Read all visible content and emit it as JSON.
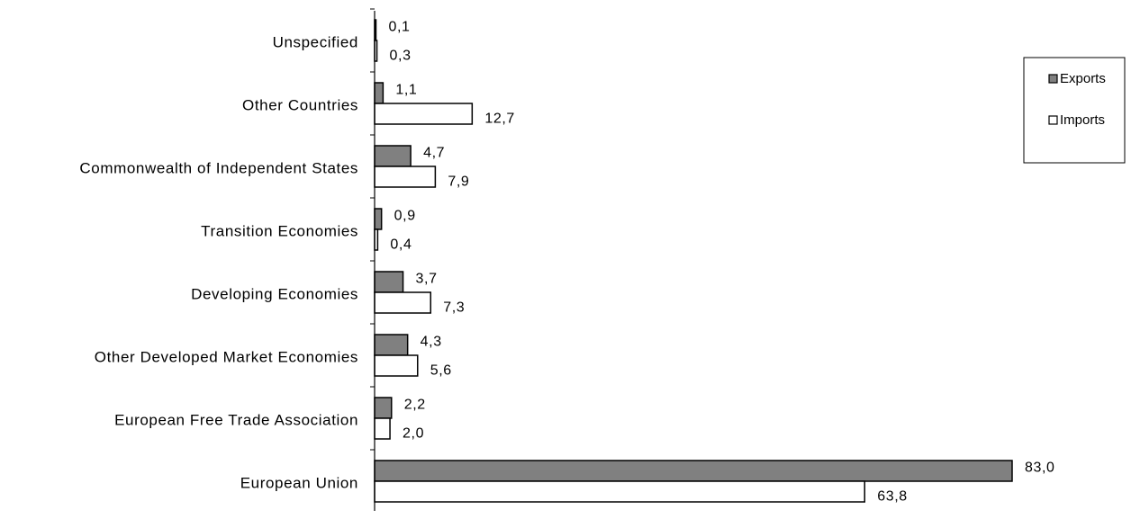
{
  "chart_data": {
    "type": "bar",
    "orientation": "horizontal",
    "categories": [
      "European Union",
      "European Free Trade Association",
      "Other Developed Market Economies",
      "Developing Economies",
      "Transition Economies",
      "Commonwealth of Independent States",
      "Other Countries",
      "Unspecified"
    ],
    "series": [
      {
        "name": "Exports",
        "values": [
          83.0,
          2.2,
          4.3,
          3.7,
          0.9,
          4.7,
          1.1,
          0.1
        ],
        "labels": [
          "83,0",
          "2,2",
          "4,3",
          "3,7",
          "0,9",
          "4,7",
          "1,1",
          "0,1"
        ],
        "color": "#808080"
      },
      {
        "name": "Imports",
        "values": [
          63.8,
          2.0,
          5.6,
          7.3,
          0.4,
          7.9,
          12.7,
          0.3
        ],
        "labels": [
          "63,8",
          "2,0",
          "5,6",
          "7,3",
          "0,4",
          "7,9",
          "12,7",
          "0,3"
        ],
        "color": "#ffffff"
      }
    ],
    "xlim": [
      0,
      83
    ],
    "grid": false,
    "legend": "right",
    "title": "",
    "xlabel": "",
    "ylabel": ""
  }
}
